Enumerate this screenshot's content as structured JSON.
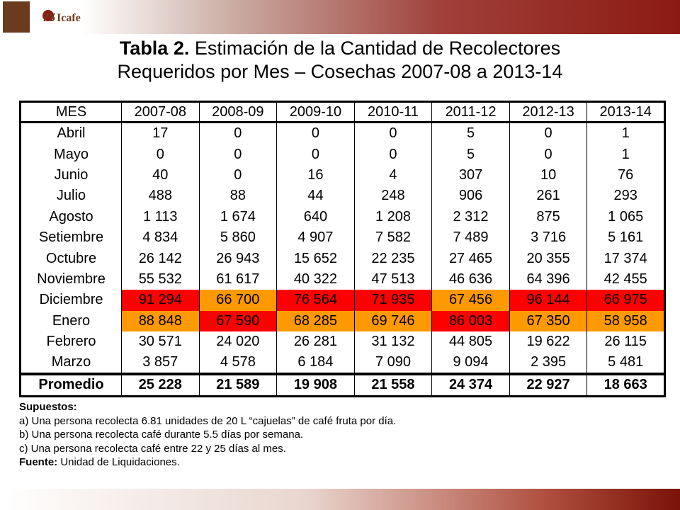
{
  "header": {
    "logo_number": "75",
    "logo_name": "Icafe"
  },
  "title": {
    "label": "Tabla 2.",
    "line1": "Estimación de la Cantidad de Recolectores",
    "line2": "Requeridos por Mes – Cosechas 2007-08 a 2013-14"
  },
  "table": {
    "columns": [
      "MES",
      "2007-08",
      "2008-09",
      "2009-10",
      "2010-11",
      "2011-12",
      "2012-13",
      "2013-14"
    ],
    "rows": [
      {
        "cells": [
          "Abril",
          "17",
          "0",
          "0",
          "0",
          "5",
          "0",
          "1"
        ]
      },
      {
        "cells": [
          "Mayo",
          "0",
          "0",
          "0",
          "0",
          "5",
          "0",
          "1"
        ]
      },
      {
        "cells": [
          "Junio",
          "40",
          "0",
          "16",
          "4",
          "307",
          "10",
          "76"
        ]
      },
      {
        "cells": [
          "Julio",
          "488",
          "88",
          "44",
          "248",
          "906",
          "261",
          "293"
        ]
      },
      {
        "cells": [
          "Agosto",
          "1 113",
          "1 674",
          "640",
          "1 208",
          "2 312",
          "875",
          "1 065"
        ]
      },
      {
        "cells": [
          "Setiembre",
          "4 834",
          "5 860",
          "4 907",
          "7 582",
          "7 489",
          "3 716",
          "5 161"
        ]
      },
      {
        "cells": [
          "Octubre",
          "26 142",
          "26 943",
          "15 652",
          "22 235",
          "27 465",
          "20 355",
          "17 374"
        ]
      },
      {
        "cells": [
          "Noviembre",
          "55 532",
          "61 617",
          "40 322",
          "47 513",
          "46 636",
          "64 396",
          "42 455"
        ]
      },
      {
        "cells": [
          "Diciembre",
          "91 294",
          "66 700",
          "76 564",
          "71 935",
          "67 456",
          "96 144",
          "66 975"
        ],
        "colors": [
          null,
          "#ff0000",
          "#ff9900",
          "#ff0000",
          "#ff0000",
          "#ff9900",
          "#ff0000",
          "#ff0000"
        ]
      },
      {
        "cells": [
          "Enero",
          "88 848",
          "67 590",
          "68 285",
          "69 746",
          "86 003",
          "67 350",
          "58 958"
        ],
        "colors": [
          null,
          "#ff9900",
          "#ff0000",
          "#ff9900",
          "#ff9900",
          "#ff0000",
          "#ff9900",
          "#ff9900"
        ]
      },
      {
        "cells": [
          "Febrero",
          "30 571",
          "24 020",
          "26 281",
          "31 132",
          "44 805",
          "19 622",
          "26 115"
        ]
      },
      {
        "cells": [
          "Marzo",
          "3 857",
          "4 578",
          "6 184",
          "7 090",
          "9 094",
          "2 395",
          "5 481"
        ]
      }
    ],
    "footer_row": [
      "Promedio",
      "25 228",
      "21 589",
      "19 908",
      "21 558",
      "24 374",
      "22 927",
      "18 663"
    ]
  },
  "notes": {
    "heading": "Supuestos:",
    "items": [
      "a) Una persona recolecta 6.81 unidades de 20 L “cajuelas” de café fruta por día.",
      "b) Una persona recolecta café durante 5.5 días por semana.",
      "c) Una persona recolecta café entre 22 y 25 días al mes."
    ],
    "source_label": "Fuente:",
    "source_text": " Unidad de Liquidaciones."
  }
}
